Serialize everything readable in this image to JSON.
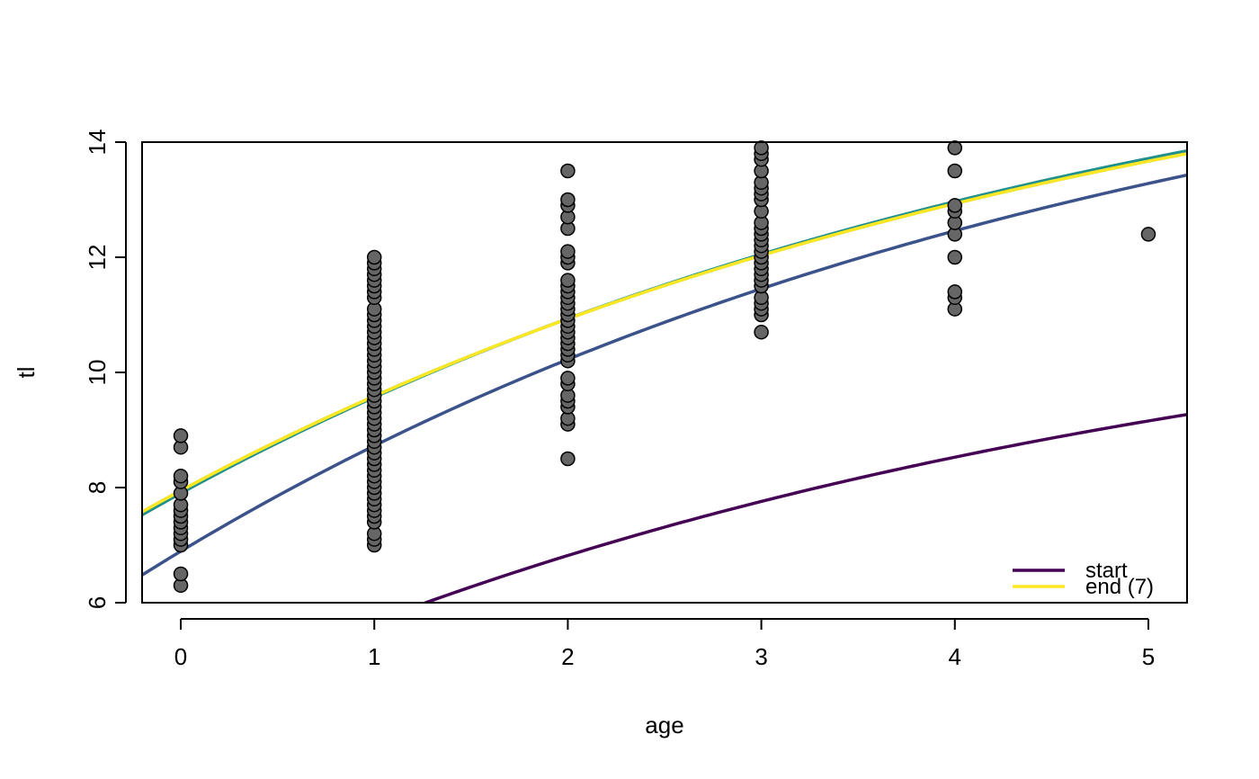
{
  "chart_data": {
    "type": "scatter",
    "title": "",
    "xlabel": "age",
    "ylabel": "tl",
    "xlim": [
      -0.2,
      5.2
    ],
    "ylim": [
      6,
      14
    ],
    "x_ticks": [
      0,
      1,
      2,
      3,
      4,
      5
    ],
    "y_ticks": [
      6,
      8,
      10,
      12,
      14
    ],
    "grid": false,
    "legend_position": "bottom-right",
    "point_color": "#666666",
    "point_outline": "#000000",
    "points": {
      "0": [
        6.3,
        6.5,
        7.0,
        7.1,
        7.2,
        7.3,
        7.4,
        7.5,
        7.6,
        7.7,
        7.9,
        8.1,
        8.2,
        8.7,
        8.9
      ],
      "1": [
        7.0,
        7.1,
        7.2,
        7.4,
        7.5,
        7.6,
        7.7,
        7.8,
        7.9,
        8.0,
        8.1,
        8.2,
        8.3,
        8.4,
        8.5,
        8.6,
        8.7,
        8.8,
        8.9,
        9.0,
        9.1,
        9.2,
        9.3,
        9.4,
        9.5,
        9.6,
        9.7,
        9.8,
        9.9,
        10.0,
        10.1,
        10.2,
        10.3,
        10.4,
        10.5,
        10.6,
        10.7,
        10.8,
        10.9,
        11.0,
        11.1,
        11.3,
        11.4,
        11.5,
        11.6,
        11.7,
        11.8,
        11.9,
        12.0
      ],
      "2": [
        8.5,
        9.1,
        9.2,
        9.4,
        9.5,
        9.6,
        9.8,
        9.9,
        10.2,
        10.3,
        10.4,
        10.5,
        10.6,
        10.7,
        10.8,
        10.9,
        11.0,
        11.1,
        11.2,
        11.3,
        11.4,
        11.5,
        11.6,
        11.9,
        12.0,
        12.1,
        12.5,
        12.7,
        12.9,
        13.0,
        13.5
      ],
      "3": [
        10.7,
        11.0,
        11.1,
        11.2,
        11.3,
        11.5,
        11.6,
        11.7,
        11.8,
        11.9,
        12.0,
        12.1,
        12.2,
        12.3,
        12.4,
        12.5,
        12.6,
        12.8,
        13.0,
        13.1,
        13.2,
        13.3,
        13.5,
        13.7,
        13.8,
        13.9
      ],
      "4": [
        11.1,
        11.3,
        11.4,
        12.0,
        12.4,
        12.6,
        12.8,
        12.9,
        13.5,
        13.9
      ],
      "5": [
        12.4
      ]
    },
    "curves": [
      {
        "Linf": 12.0,
        "K": 0.2,
        "t0": -2.2,
        "color": "#440154"
      },
      {
        "Linf": 17.0,
        "K": 0.2,
        "t0": -2.6,
        "color": "#3B528B"
      },
      {
        "Linf": 17.1,
        "K": 0.2,
        "t0": -3.1,
        "color": "#21908C"
      },
      {
        "Linf": 17.0,
        "K": 0.2,
        "t0": -3.15,
        "color": "#5DC863"
      },
      {
        "Linf": 17.0,
        "K": 0.2,
        "t0": -3.15,
        "color": "#FDE725"
      }
    ],
    "legend": [
      {
        "label": "start",
        "color": "#440154"
      },
      {
        "label": "end (7)",
        "color": "#FDE725"
      }
    ]
  }
}
